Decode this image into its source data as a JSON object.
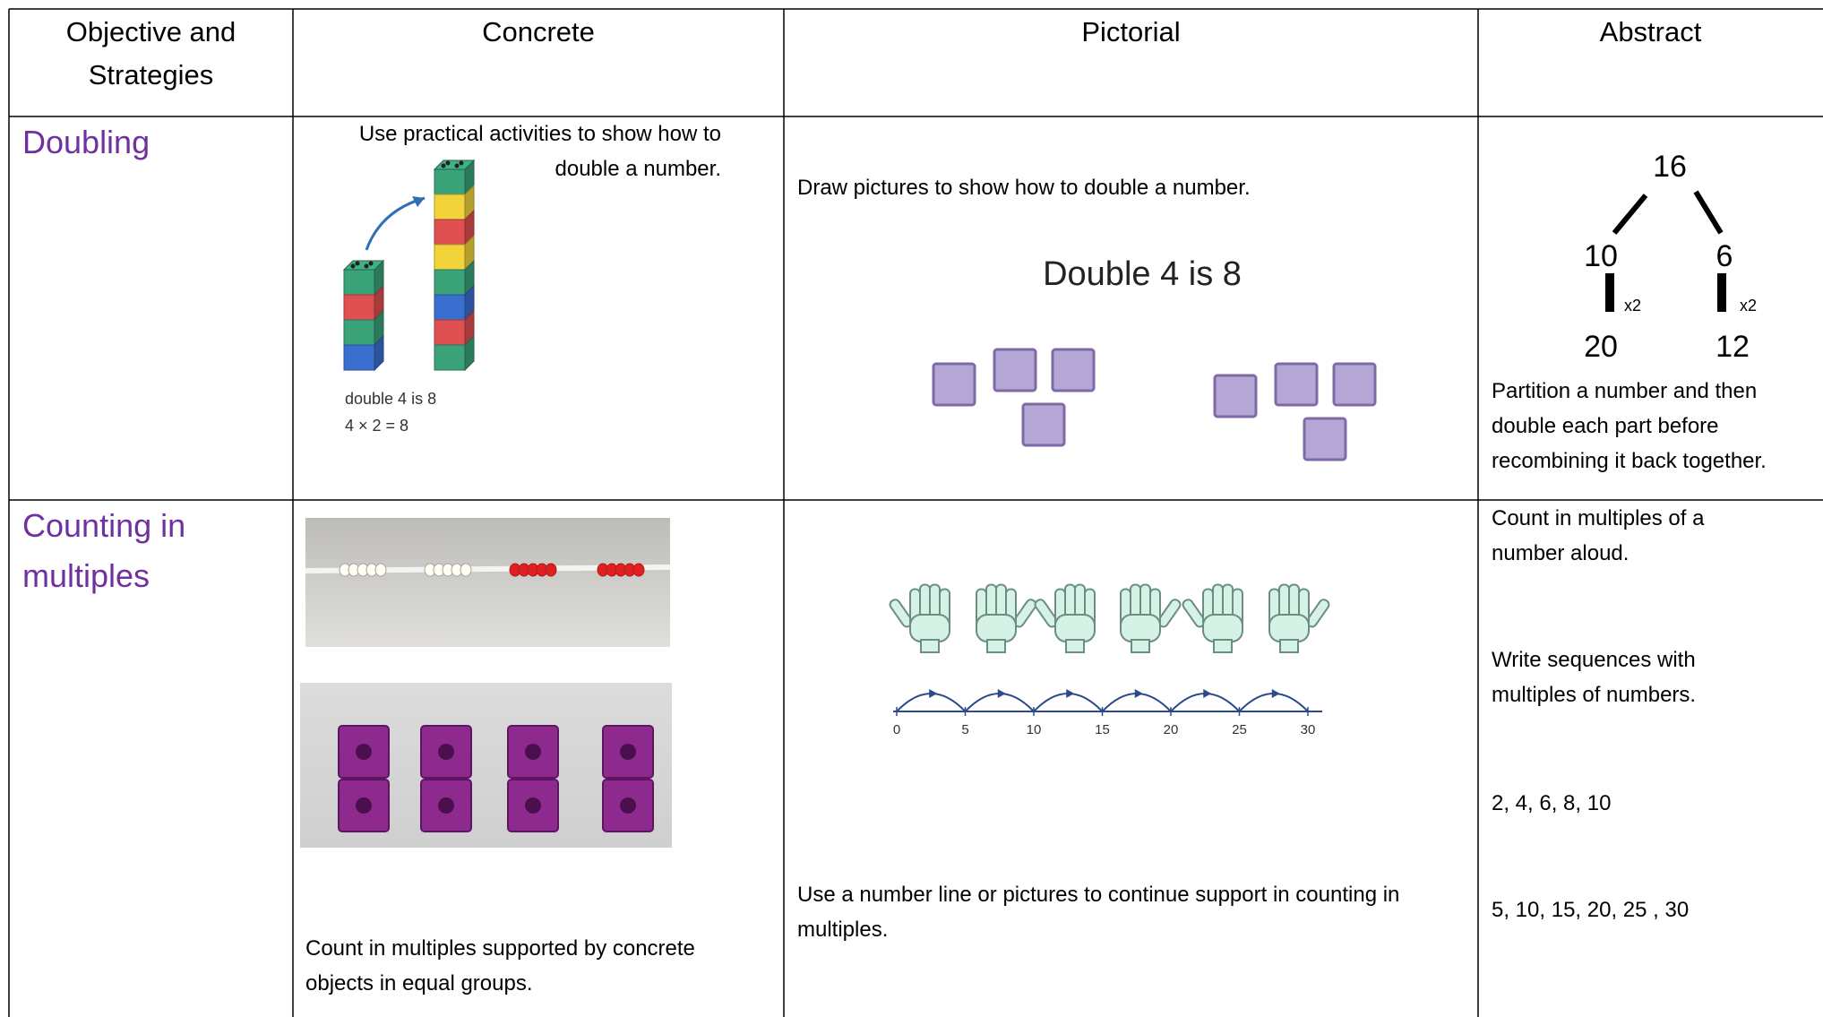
{
  "header": {
    "columns": [
      "Objective and Strategies",
      "Concrete",
      "Pictorial",
      "Abstract"
    ]
  },
  "rows": [
    {
      "objective": "Doubling",
      "concrete": {
        "text": "Use practical activities to show how to double a number.",
        "captions": [
          "double 4 is 8",
          "4 × 2 = 8"
        ]
      },
      "pictorial": {
        "text": "Draw pictures to show how to double a number.",
        "heading": "Double 4 is 8"
      },
      "abstract": {
        "tree": {
          "top": "16",
          "parts": [
            "10",
            "6"
          ],
          "multipliers": [
            "x2",
            "x2"
          ],
          "results": [
            "20",
            "12"
          ]
        },
        "text": "Partition a number and then double each part before recombining it back together."
      }
    },
    {
      "objective": "Counting in multiples",
      "concrete": {
        "text": "Count in multiples supported by concrete objects in equal groups."
      },
      "pictorial": {
        "number_line": [
          "0",
          "5",
          "10",
          "15",
          "20",
          "25",
          "30"
        ],
        "text": "Use a number line or pictures to continue support in counting in multiples."
      },
      "abstract": {
        "lines": [
          "Count in multiples of a number aloud.",
          "Write sequences with multiples of numbers.",
          "2, 4, 6, 8, 10",
          "5, 10, 15, 20, 25 , 30"
        ]
      }
    }
  ]
}
